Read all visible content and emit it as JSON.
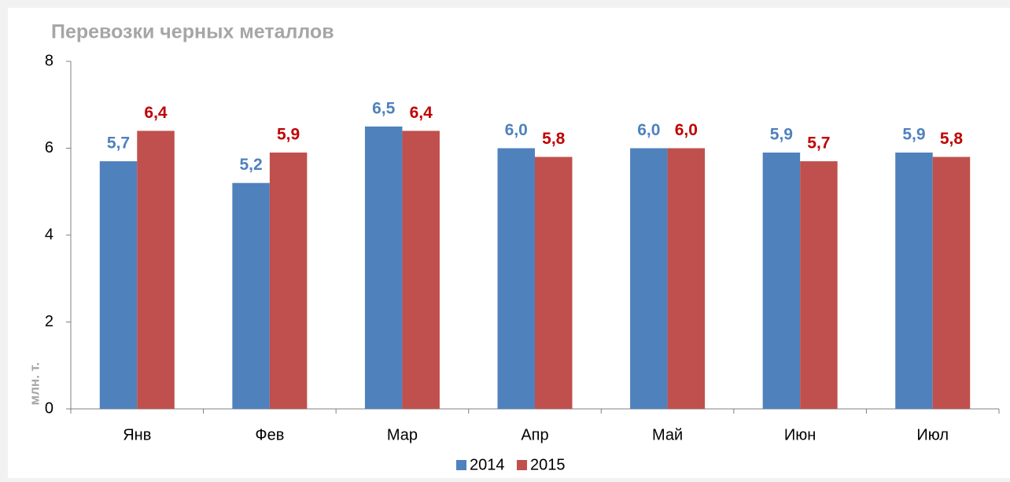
{
  "chart_data": {
    "type": "bar",
    "title": "Перевозки черных металлов",
    "y_label": "млн. т.",
    "categories": [
      "Янв",
      "Фев",
      "Мар",
      "Апр",
      "Май",
      "Июн",
      "Июл"
    ],
    "series": [
      {
        "name": "2014",
        "color": "#4f81bd",
        "label_color": "#4f81bd",
        "values": [
          5.7,
          5.2,
          6.5,
          6.0,
          6.0,
          5.9,
          5.9
        ],
        "value_labels": [
          "5,7",
          "5,2",
          "6,5",
          "6,0",
          "6,0",
          "5,9",
          "5,9"
        ]
      },
      {
        "name": "2015",
        "color": "#c0504d",
        "label_color": "#c00000",
        "values": [
          6.4,
          5.9,
          6.4,
          5.8,
          6.0,
          5.7,
          5.8
        ],
        "value_labels": [
          "6,4",
          "5,9",
          "6,4",
          "5,8",
          "6,0",
          "5,7",
          "5,8"
        ]
      }
    ],
    "ylim": [
      0,
      8
    ],
    "yticks": [
      0,
      2,
      4,
      6,
      8
    ],
    "grid": false,
    "legend": "bottom"
  }
}
